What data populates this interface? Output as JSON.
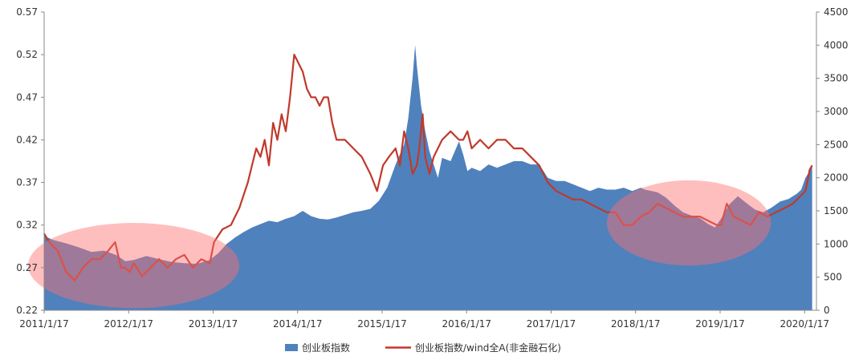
{
  "chart_data": {
    "type": "area+line",
    "title": "",
    "x_tick_labels": [
      "2011/1/17",
      "2012/1/17",
      "2013/1/17",
      "2014/1/17",
      "2015/1/17",
      "2016/1/17",
      "2017/1/17",
      "2018/1/17",
      "2019/1/17",
      "2020/1/17"
    ],
    "left_axis": {
      "ylim": [
        0.22,
        0.57
      ],
      "ticks": [
        "0.22",
        "0.27",
        "0.32",
        "0.37",
        "0.42",
        "0.47",
        "0.52",
        "0.57"
      ]
    },
    "right_axis": {
      "ylim": [
        0,
        4500
      ],
      "ticks": [
        "0",
        "500",
        "1000",
        "1500",
        "2000",
        "2500",
        "3000",
        "3500",
        "4000",
        "4500"
      ]
    },
    "legend_position": "bottom",
    "series": [
      {
        "name": "创业板指数",
        "type": "area",
        "axis": "right",
        "color": "#4F81BD",
        "points": [
          [
            2011.04,
            1120
          ],
          [
            2011.15,
            1060
          ],
          [
            2011.3,
            1010
          ],
          [
            2011.45,
            950
          ],
          [
            2011.6,
            880
          ],
          [
            2011.75,
            900
          ],
          [
            2011.9,
            830
          ],
          [
            2012.0,
            740
          ],
          [
            2012.1,
            760
          ],
          [
            2012.25,
            820
          ],
          [
            2012.4,
            770
          ],
          [
            2012.55,
            730
          ],
          [
            2012.7,
            710
          ],
          [
            2012.85,
            700
          ],
          [
            2013.0,
            760
          ],
          [
            2013.1,
            860
          ],
          [
            2013.2,
            1000
          ],
          [
            2013.3,
            1100
          ],
          [
            2013.4,
            1180
          ],
          [
            2013.5,
            1250
          ],
          [
            2013.6,
            1300
          ],
          [
            2013.7,
            1350
          ],
          [
            2013.8,
            1330
          ],
          [
            2013.9,
            1380
          ],
          [
            2014.0,
            1420
          ],
          [
            2014.1,
            1500
          ],
          [
            2014.2,
            1420
          ],
          [
            2014.3,
            1380
          ],
          [
            2014.4,
            1370
          ],
          [
            2014.5,
            1400
          ],
          [
            2014.6,
            1440
          ],
          [
            2014.7,
            1480
          ],
          [
            2014.8,
            1500
          ],
          [
            2014.9,
            1530
          ],
          [
            2015.0,
            1650
          ],
          [
            2015.1,
            1850
          ],
          [
            2015.2,
            2200
          ],
          [
            2015.3,
            2500
          ],
          [
            2015.35,
            2900
          ],
          [
            2015.4,
            3500
          ],
          [
            2015.43,
            4000
          ],
          [
            2015.45,
            3700
          ],
          [
            2015.5,
            3100
          ],
          [
            2015.55,
            2700
          ],
          [
            2015.6,
            2400
          ],
          [
            2015.65,
            2200
          ],
          [
            2015.7,
            2000
          ],
          [
            2015.75,
            2300
          ],
          [
            2015.85,
            2250
          ],
          [
            2015.95,
            2550
          ],
          [
            2016.0,
            2350
          ],
          [
            2016.05,
            2100
          ],
          [
            2016.1,
            2150
          ],
          [
            2016.2,
            2100
          ],
          [
            2016.3,
            2200
          ],
          [
            2016.4,
            2150
          ],
          [
            2016.5,
            2200
          ],
          [
            2016.6,
            2250
          ],
          [
            2016.7,
            2250
          ],
          [
            2016.8,
            2200
          ],
          [
            2016.9,
            2200
          ],
          [
            2017.0,
            2000
          ],
          [
            2017.1,
            1950
          ],
          [
            2017.2,
            1950
          ],
          [
            2017.3,
            1900
          ],
          [
            2017.4,
            1850
          ],
          [
            2017.5,
            1800
          ],
          [
            2017.6,
            1850
          ],
          [
            2017.7,
            1820
          ],
          [
            2017.8,
            1820
          ],
          [
            2017.9,
            1850
          ],
          [
            2018.0,
            1800
          ],
          [
            2018.1,
            1850
          ],
          [
            2018.15,
            1820
          ],
          [
            2018.3,
            1780
          ],
          [
            2018.4,
            1700
          ],
          [
            2018.5,
            1580
          ],
          [
            2018.6,
            1480
          ],
          [
            2018.7,
            1430
          ],
          [
            2018.8,
            1390
          ],
          [
            2018.9,
            1300
          ],
          [
            2018.98,
            1250
          ],
          [
            2019.05,
            1380
          ],
          [
            2019.15,
            1600
          ],
          [
            2019.25,
            1720
          ],
          [
            2019.35,
            1620
          ],
          [
            2019.45,
            1520
          ],
          [
            2019.55,
            1480
          ],
          [
            2019.65,
            1550
          ],
          [
            2019.75,
            1640
          ],
          [
            2019.85,
            1680
          ],
          [
            2019.95,
            1760
          ],
          [
            2020.0,
            1820
          ],
          [
            2020.05,
            2000
          ],
          [
            2020.1,
            2100
          ],
          [
            2020.13,
            2200
          ]
        ]
      },
      {
        "name": "创业板指数/wind全A(非金融石化)",
        "type": "line",
        "axis": "left",
        "color": "#C0392B",
        "points": [
          [
            2011.04,
            0.31
          ],
          [
            2011.1,
            0.3
          ],
          [
            2011.2,
            0.29
          ],
          [
            2011.3,
            0.265
          ],
          [
            2011.4,
            0.255
          ],
          [
            2011.5,
            0.27
          ],
          [
            2011.6,
            0.28
          ],
          [
            2011.7,
            0.28
          ],
          [
            2011.8,
            0.29
          ],
          [
            2011.88,
            0.3
          ],
          [
            2011.95,
            0.27
          ],
          [
            2012.0,
            0.27
          ],
          [
            2012.05,
            0.265
          ],
          [
            2012.1,
            0.275
          ],
          [
            2012.2,
            0.26
          ],
          [
            2012.3,
            0.27
          ],
          [
            2012.4,
            0.28
          ],
          [
            2012.5,
            0.27
          ],
          [
            2012.6,
            0.28
          ],
          [
            2012.7,
            0.285
          ],
          [
            2012.8,
            0.27
          ],
          [
            2012.9,
            0.28
          ],
          [
            2013.0,
            0.275
          ],
          [
            2013.05,
            0.3
          ],
          [
            2013.15,
            0.315
          ],
          [
            2013.25,
            0.32
          ],
          [
            2013.35,
            0.34
          ],
          [
            2013.45,
            0.37
          ],
          [
            2013.5,
            0.39
          ],
          [
            2013.55,
            0.41
          ],
          [
            2013.6,
            0.4
          ],
          [
            2013.65,
            0.42
          ],
          [
            2013.7,
            0.39
          ],
          [
            2013.75,
            0.44
          ],
          [
            2013.8,
            0.42
          ],
          [
            2013.85,
            0.45
          ],
          [
            2013.9,
            0.43
          ],
          [
            2013.95,
            0.47
          ],
          [
            2014.0,
            0.52
          ],
          [
            2014.05,
            0.51
          ],
          [
            2014.1,
            0.5
          ],
          [
            2014.15,
            0.48
          ],
          [
            2014.2,
            0.47
          ],
          [
            2014.25,
            0.47
          ],
          [
            2014.3,
            0.46
          ],
          [
            2014.35,
            0.47
          ],
          [
            2014.4,
            0.47
          ],
          [
            2014.45,
            0.44
          ],
          [
            2014.5,
            0.42
          ],
          [
            2014.6,
            0.42
          ],
          [
            2014.7,
            0.41
          ],
          [
            2014.8,
            0.4
          ],
          [
            2014.9,
            0.38
          ],
          [
            2014.98,
            0.36
          ],
          [
            2015.05,
            0.39
          ],
          [
            2015.12,
            0.4
          ],
          [
            2015.2,
            0.41
          ],
          [
            2015.25,
            0.39
          ],
          [
            2015.3,
            0.43
          ],
          [
            2015.35,
            0.41
          ],
          [
            2015.4,
            0.38
          ],
          [
            2015.45,
            0.39
          ],
          [
            2015.48,
            0.41
          ],
          [
            2015.52,
            0.45
          ],
          [
            2015.55,
            0.4
          ],
          [
            2015.6,
            0.38
          ],
          [
            2015.65,
            0.4
          ],
          [
            2015.75,
            0.42
          ],
          [
            2015.85,
            0.43
          ],
          [
            2015.95,
            0.42
          ],
          [
            2016.0,
            0.42
          ],
          [
            2016.05,
            0.43
          ],
          [
            2016.1,
            0.41
          ],
          [
            2016.2,
            0.42
          ],
          [
            2016.3,
            0.41
          ],
          [
            2016.4,
            0.42
          ],
          [
            2016.5,
            0.42
          ],
          [
            2016.6,
            0.41
          ],
          [
            2016.7,
            0.41
          ],
          [
            2016.8,
            0.4
          ],
          [
            2016.9,
            0.39
          ],
          [
            2017.0,
            0.37
          ],
          [
            2017.1,
            0.36
          ],
          [
            2017.2,
            0.355
          ],
          [
            2017.3,
            0.35
          ],
          [
            2017.4,
            0.35
          ],
          [
            2017.5,
            0.345
          ],
          [
            2017.6,
            0.34
          ],
          [
            2017.7,
            0.335
          ],
          [
            2017.8,
            0.335
          ],
          [
            2017.9,
            0.32
          ],
          [
            2018.0,
            0.32
          ],
          [
            2018.1,
            0.33
          ],
          [
            2018.2,
            0.335
          ],
          [
            2018.3,
            0.345
          ],
          [
            2018.4,
            0.34
          ],
          [
            2018.5,
            0.335
          ],
          [
            2018.6,
            0.33
          ],
          [
            2018.7,
            0.33
          ],
          [
            2018.8,
            0.33
          ],
          [
            2018.9,
            0.325
          ],
          [
            2019.0,
            0.32
          ],
          [
            2019.05,
            0.32
          ],
          [
            2019.12,
            0.345
          ],
          [
            2019.2,
            0.33
          ],
          [
            2019.3,
            0.325
          ],
          [
            2019.4,
            0.32
          ],
          [
            2019.5,
            0.335
          ],
          [
            2019.6,
            0.33
          ],
          [
            2019.7,
            0.335
          ],
          [
            2019.8,
            0.34
          ],
          [
            2019.9,
            0.345
          ],
          [
            2020.0,
            0.355
          ],
          [
            2020.05,
            0.36
          ],
          [
            2020.1,
            0.385
          ],
          [
            2020.13,
            0.39
          ]
        ]
      }
    ],
    "highlights": [
      {
        "shape": "ellipse",
        "color": "#FF6F6F",
        "opacity": 0.45,
        "x_center": 2012.1,
        "x_radius": 1.25,
        "y_center": 0.2725,
        "y_radius": 0.05
      },
      {
        "shape": "ellipse",
        "color": "#FF6F6F",
        "opacity": 0.45,
        "x_center": 2018.67,
        "x_radius": 0.97,
        "y_center": 0.3225,
        "y_radius": 0.05
      }
    ]
  }
}
